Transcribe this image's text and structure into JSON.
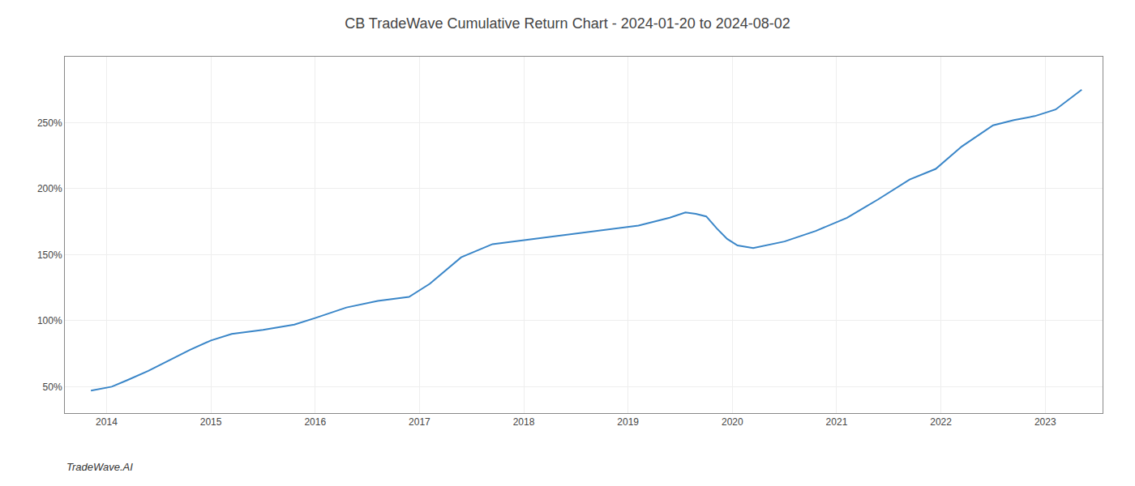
{
  "chart_data": {
    "type": "line",
    "title": "CB TradeWave Cumulative Return Chart - 2024-01-20 to 2024-08-02",
    "annotations": [
      "TradeWave.AI"
    ],
    "color": "#3a86c8",
    "x": [
      2013.85,
      2014.05,
      2014.2,
      2014.4,
      2014.6,
      2014.8,
      2015.0,
      2015.2,
      2015.5,
      2015.8,
      2016.0,
      2016.3,
      2016.6,
      2016.9,
      2017.1,
      2017.4,
      2017.7,
      2017.9,
      2018.1,
      2018.4,
      2018.7,
      2018.9,
      2019.1,
      2019.4,
      2019.55,
      2019.65,
      2019.75,
      2019.85,
      2019.95,
      2020.05,
      2020.2,
      2020.5,
      2020.8,
      2021.1,
      2021.4,
      2021.7,
      2021.95,
      2022.2,
      2022.5,
      2022.7,
      2022.9,
      2023.1,
      2023.35
    ],
    "values": [
      47,
      50,
      55,
      62,
      70,
      78,
      85,
      90,
      93,
      97,
      102,
      110,
      115,
      118,
      128,
      148,
      158,
      160,
      162,
      165,
      168,
      170,
      172,
      178,
      182,
      181,
      179,
      170,
      162,
      157,
      155,
      160,
      168,
      178,
      192,
      207,
      215,
      232,
      248,
      252,
      255,
      260,
      275
    ],
    "xlim": [
      2013.6,
      2023.55
    ],
    "xticks": [
      2014,
      2015,
      2016,
      2017,
      2018,
      2019,
      2020,
      2021,
      2022,
      2023
    ],
    "ylim": [
      30,
      300
    ],
    "yticks": [
      {
        "value": 50,
        "label": "50%"
      },
      {
        "value": 100,
        "label": "100%"
      },
      {
        "value": 150,
        "label": "150%"
      },
      {
        "value": 200,
        "label": "200%"
      },
      {
        "value": 250,
        "label": "250%"
      }
    ],
    "grid": true
  }
}
